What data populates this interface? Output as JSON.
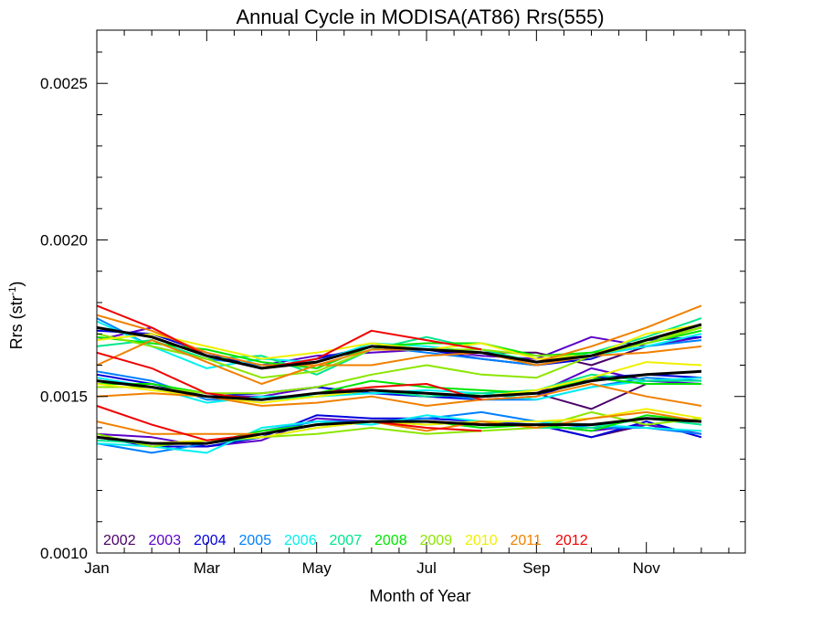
{
  "chart_data": {
    "type": "line",
    "title": "Annual Cycle in MODISA(AT86) Rrs(555)",
    "xlabel": "Month of Year",
    "ylabel": "Rrs (str",
    "ylabel_sup": "-1",
    "ylabel_close": ")",
    "xlim": [
      1,
      12.8
    ],
    "ylim": [
      0.001,
      0.00267
    ],
    "x_ticks": [
      {
        "value": 1,
        "label": "Jan"
      },
      {
        "value": 3,
        "label": "Mar"
      },
      {
        "value": 5,
        "label": "May"
      },
      {
        "value": 7,
        "label": "Jul"
      },
      {
        "value": 9,
        "label": "Sep"
      },
      {
        "value": 11,
        "label": "Nov"
      }
    ],
    "y_ticks": [
      {
        "value": 0.001,
        "label": "0.0010"
      },
      {
        "value": 0.0015,
        "label": "0.0015"
      },
      {
        "value": 0.002,
        "label": "0.0020"
      },
      {
        "value": 0.0025,
        "label": "0.0025"
      }
    ],
    "y_minor_step": 0.0001,
    "x_minor_step": 0.5,
    "x": [
      1,
      2,
      3,
      4,
      5,
      6,
      7,
      8,
      9,
      10,
      11,
      12
    ],
    "legend_placement": "bottom-left",
    "series": [
      {
        "name": "2002",
        "color": "#4b0069",
        "band": "high",
        "values": [
          null,
          null,
          null,
          null,
          null,
          null,
          0.00165,
          0.00164,
          0.00164,
          0.0016,
          0.00166,
          0.00169
        ]
      },
      {
        "name": "2002",
        "color": "#4b0069",
        "band": "mid",
        "values": [
          null,
          null,
          null,
          null,
          null,
          null,
          0.0015,
          0.0015,
          0.00151,
          0.00146,
          0.00154,
          0.00154
        ]
      },
      {
        "name": "2002",
        "color": "#4b0069",
        "band": "low",
        "values": [
          null,
          null,
          null,
          null,
          null,
          null,
          0.00142,
          0.00141,
          0.00141,
          0.00137,
          0.00141,
          0.00138
        ]
      },
      {
        "name": "2003",
        "color": "#5a00c8",
        "band": "high",
        "values": [
          0.00168,
          0.00172,
          0.00163,
          0.0016,
          0.00163,
          0.00164,
          0.00165,
          0.00163,
          0.00162,
          0.00169,
          0.00166,
          0.00169
        ]
      },
      {
        "name": "2003",
        "color": "#5a00c8",
        "band": "mid",
        "values": [
          0.00155,
          0.00153,
          0.0015,
          0.0015,
          0.00153,
          0.00151,
          0.00151,
          0.0015,
          0.00151,
          0.00159,
          0.00155,
          0.00154
        ]
      },
      {
        "name": "2003",
        "color": "#5a00c8",
        "band": "low",
        "values": [
          0.00138,
          0.00137,
          0.00134,
          0.00136,
          0.00143,
          0.00142,
          0.00142,
          0.00141,
          0.00141,
          0.00139,
          0.00141,
          0.00138
        ]
      },
      {
        "name": "2004",
        "color": "#0000dc",
        "band": "high",
        "values": [
          0.00171,
          0.0017,
          0.00164,
          0.00159,
          0.00162,
          0.00166,
          0.00165,
          0.00162,
          0.0016,
          0.00162,
          0.00168,
          0.00169
        ]
      },
      {
        "name": "2004",
        "color": "#0000dc",
        "band": "mid",
        "values": [
          0.00157,
          0.00154,
          0.0015,
          0.00151,
          0.00153,
          0.00151,
          0.0015,
          0.00149,
          0.0015,
          0.00156,
          0.00157,
          0.00156
        ]
      },
      {
        "name": "2004",
        "color": "#0000dc",
        "band": "low",
        "values": [
          0.00137,
          0.00134,
          0.00134,
          0.00137,
          0.00144,
          0.00143,
          0.00143,
          0.00142,
          0.00141,
          0.00137,
          0.00142,
          0.00137
        ]
      },
      {
        "name": "2005",
        "color": "#0080ff",
        "band": "high",
        "values": [
          0.00175,
          0.00166,
          0.00162,
          0.0016,
          0.00161,
          0.00166,
          0.00164,
          0.00162,
          0.0016,
          0.00163,
          0.00166,
          0.00168
        ]
      },
      {
        "name": "2005",
        "color": "#0080ff",
        "band": "mid",
        "values": [
          0.00158,
          0.00155,
          0.00149,
          0.00149,
          0.00151,
          0.00151,
          0.00151,
          0.00149,
          0.00149,
          0.00153,
          0.00156,
          0.00155
        ]
      },
      {
        "name": "2005",
        "color": "#0080ff",
        "band": "low",
        "values": [
          0.00135,
          0.00132,
          0.00135,
          0.00139,
          0.00142,
          0.00142,
          0.00143,
          0.00145,
          0.00142,
          0.0014,
          0.0014,
          0.00138
        ]
      },
      {
        "name": "2006",
        "color": "#00f0f0",
        "band": "high",
        "values": [
          0.00174,
          0.00166,
          0.00159,
          0.00162,
          0.00161,
          0.00167,
          0.00166,
          0.00164,
          0.00161,
          0.00163,
          0.00166,
          0.0017
        ]
      },
      {
        "name": "2006",
        "color": "#00f0f0",
        "band": "mid",
        "values": [
          0.00156,
          0.00153,
          0.00148,
          0.0015,
          0.0015,
          0.00151,
          0.00152,
          0.00151,
          0.00149,
          0.00153,
          0.00155,
          0.00156
        ]
      },
      {
        "name": "2006",
        "color": "#00f0f0",
        "band": "low",
        "values": [
          0.00135,
          0.00134,
          0.00132,
          0.0014,
          0.00142,
          0.00141,
          0.00144,
          0.00142,
          0.00142,
          0.00141,
          0.0014,
          0.00139
        ]
      },
      {
        "name": "2007",
        "color": "#00e68c",
        "band": "high",
        "values": [
          0.00166,
          0.00168,
          0.00162,
          0.00163,
          0.00157,
          0.00165,
          0.00169,
          0.00165,
          0.00161,
          0.00164,
          0.00169,
          0.00175
        ]
      },
      {
        "name": "2007",
        "color": "#00e68c",
        "band": "mid",
        "values": [
          0.00153,
          0.00153,
          0.0015,
          0.00149,
          0.0015,
          0.00152,
          0.0015,
          0.00151,
          0.00152,
          0.00157,
          0.00155,
          0.00155
        ]
      },
      {
        "name": "2007",
        "color": "#00e68c",
        "band": "low",
        "values": [
          0.00136,
          0.00135,
          0.00135,
          0.00137,
          0.0014,
          0.00142,
          0.00141,
          0.00142,
          0.0014,
          0.0014,
          0.00143,
          0.00141
        ]
      },
      {
        "name": "2008",
        "color": "#00e600",
        "band": "high",
        "values": [
          0.00169,
          0.00167,
          0.00165,
          0.00161,
          0.00159,
          0.00166,
          0.00167,
          0.00167,
          0.00163,
          0.00164,
          0.00167,
          0.00171
        ]
      },
      {
        "name": "2008",
        "color": "#00e600",
        "band": "mid",
        "values": [
          0.00154,
          0.00154,
          0.00151,
          0.00149,
          0.00151,
          0.00155,
          0.00153,
          0.00152,
          0.00151,
          0.00156,
          0.00154,
          0.00154
        ]
      },
      {
        "name": "2008",
        "color": "#00e600",
        "band": "low",
        "values": [
          0.00137,
          0.00135,
          0.00135,
          0.00139,
          0.00141,
          0.00142,
          0.00142,
          0.0014,
          0.00141,
          0.00139,
          0.00144,
          0.00142
        ]
      },
      {
        "name": "2009",
        "color": "#8ce600",
        "band": "high",
        "values": [
          0.0017,
          0.00166,
          0.00162,
          0.00156,
          0.00158,
          0.00165,
          0.00165,
          0.00165,
          0.00163,
          0.00163,
          0.00168,
          0.00172
        ]
      },
      {
        "name": "2009",
        "color": "#8ce600",
        "band": "mid",
        "values": [
          0.00153,
          0.00153,
          0.00151,
          0.00151,
          0.00153,
          0.00157,
          0.0016,
          0.00157,
          0.00156,
          0.00163,
          0.00167,
          0.00172
        ]
      },
      {
        "name": "2009",
        "color": "#8ce600",
        "band": "low",
        "values": [
          0.00138,
          0.00134,
          0.00136,
          0.00137,
          0.00138,
          0.0014,
          0.00138,
          0.00139,
          0.0014,
          0.00145,
          0.00141,
          0.00143
        ]
      },
      {
        "name": "2010",
        "color": "#f0f000",
        "band": "high",
        "values": [
          0.00168,
          0.0017,
          0.00166,
          0.00162,
          0.00164,
          0.00167,
          0.00165,
          0.00167,
          0.00162,
          0.00163,
          0.0017,
          0.00173
        ]
      },
      {
        "name": "2010",
        "color": "#f0f000",
        "band": "mid",
        "values": [
          0.00154,
          0.00152,
          0.0015,
          0.00148,
          0.0015,
          0.00152,
          0.00151,
          0.0015,
          0.00152,
          0.00156,
          0.00161,
          0.0016
        ]
      },
      {
        "name": "2010",
        "color": "#f0f000",
        "band": "low",
        "values": [
          0.00137,
          0.00135,
          0.00136,
          0.00137,
          0.0014,
          0.00142,
          0.00141,
          0.00142,
          0.00142,
          0.00143,
          0.00146,
          0.00143
        ]
      },
      {
        "name": "2011",
        "color": "#f08000",
        "band": "high",
        "values": [
          0.0016,
          0.00168,
          0.00161,
          0.00154,
          0.0016,
          0.0016,
          0.00163,
          0.00164,
          0.00161,
          0.00166,
          0.00172,
          0.00179
        ]
      },
      {
        "name": "2011",
        "color": "#f08000",
        "band": "mid",
        "values": [
          0.0015,
          0.00151,
          0.0015,
          0.00147,
          0.00148,
          0.0015,
          0.00147,
          0.00149,
          0.0015,
          0.00154,
          0.0015,
          0.00147
        ]
      },
      {
        "name": "2011",
        "color": "#f08000",
        "band": "low",
        "values": [
          0.00142,
          0.00138,
          0.00138,
          0.00138,
          0.00141,
          0.00142,
          0.00139,
          0.00142,
          0.0014,
          0.00143,
          0.00145,
          0.00142
        ]
      },
      {
        "name": "2011",
        "color": "#f08000",
        "band": "extra",
        "values": [
          0.00176,
          0.00171,
          0.00164,
          0.0016,
          0.0016,
          0.00165,
          0.00165,
          0.00164,
          0.0016,
          0.00163,
          0.00164,
          0.00166
        ]
      },
      {
        "name": "2012",
        "color": "#f00000",
        "band": "high",
        "values": [
          0.00179,
          0.00172,
          0.00163,
          0.00159,
          0.00162,
          0.00171,
          0.00168,
          0.00165,
          null,
          null,
          null,
          null
        ]
      },
      {
        "name": "2012",
        "color": "#f00000",
        "band": "mid",
        "values": [
          0.00164,
          0.00159,
          0.00151,
          0.00149,
          0.00151,
          0.00153,
          0.00154,
          0.00149,
          null,
          null,
          null,
          null
        ]
      },
      {
        "name": "2012",
        "color": "#f00000",
        "band": "low",
        "values": [
          0.00147,
          0.00141,
          0.00136,
          0.00138,
          0.00141,
          0.00142,
          0.0014,
          0.00139,
          null,
          null,
          null,
          null
        ]
      },
      {
        "name": "",
        "color": "#000000",
        "band": "mean",
        "values": [
          0.00172,
          0.00169,
          0.00163,
          0.00159,
          0.00161,
          0.00166,
          0.00165,
          0.00164,
          0.00161,
          0.00163,
          0.00168,
          0.00173
        ]
      },
      {
        "name": "",
        "color": "#000000",
        "band": "mean",
        "values": [
          0.00155,
          0.00153,
          0.0015,
          0.00149,
          0.00151,
          0.00152,
          0.00151,
          0.0015,
          0.00151,
          0.00155,
          0.00157,
          0.00158
        ]
      },
      {
        "name": "",
        "color": "#000000",
        "band": "mean",
        "values": [
          0.00137,
          0.00135,
          0.00135,
          0.00138,
          0.00141,
          0.00142,
          0.00142,
          0.00141,
          0.00141,
          0.00141,
          0.00143,
          0.00142
        ]
      }
    ],
    "legend": [
      {
        "label": "2002",
        "color": "#4b0069"
      },
      {
        "label": "2003",
        "color": "#5a00c8"
      },
      {
        "label": "2004",
        "color": "#0000dc"
      },
      {
        "label": "2005",
        "color": "#0080ff"
      },
      {
        "label": "2006",
        "color": "#00f0f0"
      },
      {
        "label": "2007",
        "color": "#00e68c"
      },
      {
        "label": "2008",
        "color": "#00e600"
      },
      {
        "label": "2009",
        "color": "#8ce600"
      },
      {
        "label": "2010",
        "color": "#f0f000"
      },
      {
        "label": "2011",
        "color": "#f08000"
      },
      {
        "label": "2012",
        "color": "#f00000"
      }
    ]
  }
}
